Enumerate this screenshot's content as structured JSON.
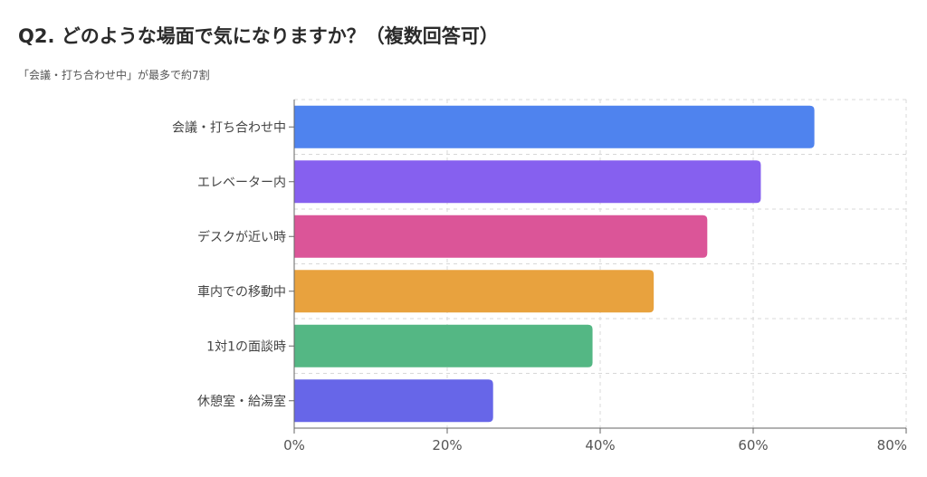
{
  "title": "Q2. どのような場面で気になりますか？（複数回答可）",
  "subtitle": "「会議・打ち合わせ中」が最多で約7割",
  "chart_data": {
    "type": "bar",
    "orientation": "horizontal",
    "categories": [
      "会議・打ち合わせ中",
      "エレベーター内",
      "デスクが近い時",
      "車内での移動中",
      "1対1の面談時",
      "休憩室・給湯室"
    ],
    "values": [
      68,
      61,
      54,
      47,
      39,
      26
    ],
    "colors": [
      "#4f83ee",
      "#8660ef",
      "#db5598",
      "#e8a23e",
      "#54b784",
      "#6766e8"
    ],
    "xticks": [
      "0%",
      "20%",
      "40%",
      "60%",
      "80%"
    ],
    "xlim": [
      0,
      80
    ],
    "grid": true
  }
}
